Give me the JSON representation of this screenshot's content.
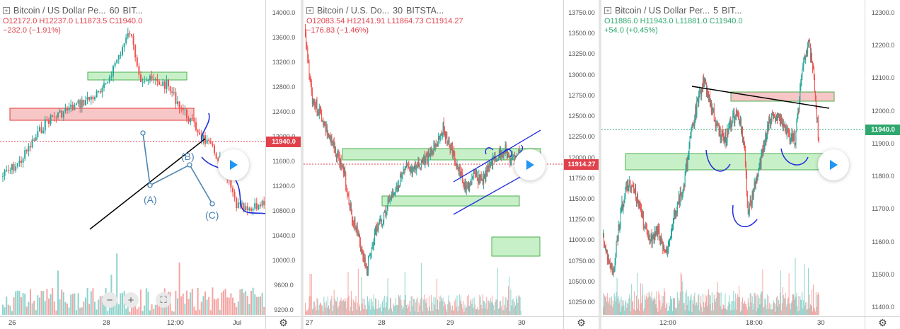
{
  "panels": [
    {
      "title": "Bitcoin / US Dollar Pe...",
      "interval": "60",
      "exchange": "BIT...",
      "ohlc": {
        "o": "O12172.0",
        "h": "H12237.0",
        "l": "L11873.5",
        "c": "C11940.0"
      },
      "change": "−232.0 (−1.91%)",
      "change_dir": "down",
      "price_tag": "11940.0",
      "price_tag_color": "#e0414b",
      "y_labels": [
        "14000.0",
        "13600.0",
        "13200.0",
        "12800.0",
        "12400.0",
        "12000.0",
        "11600.0",
        "11200.0",
        "10800.0",
        "10400.0",
        "10000.0",
        "9600.0",
        "9200.0"
      ],
      "y_range": [
        9200,
        14000
      ],
      "x_labels": [
        "26",
        "28",
        "12:00",
        "Jul"
      ],
      "wave_labels": [
        "(A)",
        "(B)",
        "(C)"
      ],
      "zoom_out": "−",
      "zoom_in": "+",
      "fullscreen": "⛶"
    },
    {
      "title": "Bitcoin / U.S. Do...",
      "interval": "30",
      "exchange": "BITSTA...",
      "ohlc": {
        "o": "O12083.54",
        "h": "H12141.91",
        "l": "L11864.73",
        "c": "C11914.27"
      },
      "change": "−176.83 (−1.46%)",
      "change_dir": "down",
      "price_tag": "11914.27",
      "price_tag_color": "#e0414b",
      "y_labels": [
        "13750.00",
        "13500.00",
        "13250.00",
        "13000.00",
        "12750.00",
        "12500.00",
        "12250.00",
        "12000.00",
        "11750.00",
        "11500.00",
        "11250.00",
        "11000.00",
        "10750.00",
        "10500.00",
        "10250.00"
      ],
      "y_range": [
        10250,
        13750
      ],
      "x_labels": [
        "27",
        "28",
        "29",
        "30"
      ]
    },
    {
      "title": "Bitcoin / US Dollar Per...",
      "interval": "5",
      "exchange": "BIT...",
      "ohlc": {
        "o": "O11886.0",
        "h": "H11943.0",
        "l": "L11881.0",
        "c": "C11940.0"
      },
      "change": "+54.0 (+0.45%)",
      "change_dir": "up",
      "price_tag": "11940.0",
      "price_tag_color": "#2fa86f",
      "y_labels": [
        "12300.0",
        "12200.0",
        "12100.0",
        "12000.0",
        "11900.0",
        "11800.0",
        "11700.0",
        "11600.0",
        "11500.0",
        "11400.0"
      ],
      "y_range": [
        11400,
        12300
      ],
      "x_labels": [
        "12:00",
        "18:00",
        "30"
      ]
    }
  ],
  "colors": {
    "up": "#26a69a",
    "down": "#ef5350",
    "vol_up": "#8fd3cb",
    "vol_down": "#f5a5a3"
  },
  "icons": {
    "settings": "gear-icon",
    "play": "play-icon",
    "symbol": "compare-square-icon"
  }
}
